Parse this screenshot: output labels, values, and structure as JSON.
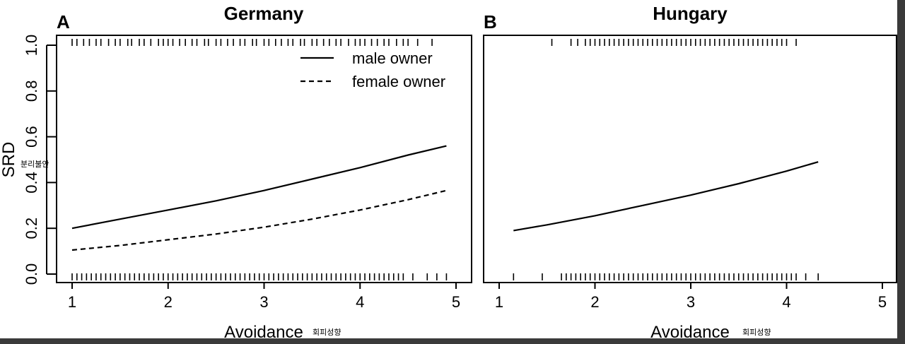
{
  "chart_data": [
    {
      "type": "line",
      "panel_letter": "A",
      "title": "Germany",
      "xlabel": "Avoidance",
      "xlabel_annotation": "회피성향",
      "ylabel": "SRD",
      "ylabel_annotation": "분리불안",
      "xlim": [
        1,
        5
      ],
      "ylim": [
        0,
        1
      ],
      "x_ticks": [
        1,
        2,
        3,
        4,
        5
      ],
      "y_ticks": [
        0.0,
        0.2,
        0.4,
        0.6,
        0.8,
        1.0
      ],
      "y_tick_labels": [
        "0.0",
        "0.2",
        "0.4",
        "0.6",
        "0.8",
        "1.0"
      ],
      "legend": {
        "position": "top-right",
        "entries": [
          {
            "label": "male owner",
            "style": "solid"
          },
          {
            "label": "female owner",
            "style": "dashed"
          }
        ]
      },
      "series": [
        {
          "name": "male owner",
          "style": "solid",
          "x": [
            1.0,
            1.5,
            2.0,
            2.5,
            3.0,
            3.5,
            4.0,
            4.5,
            4.9
          ],
          "y": [
            0.2,
            0.24,
            0.28,
            0.32,
            0.365,
            0.415,
            0.465,
            0.52,
            0.56
          ]
        },
        {
          "name": "female owner",
          "style": "dashed",
          "x": [
            1.0,
            1.5,
            2.0,
            2.5,
            3.0,
            3.5,
            4.0,
            4.5,
            4.9
          ],
          "y": [
            0.105,
            0.125,
            0.15,
            0.175,
            0.205,
            0.24,
            0.28,
            0.325,
            0.365
          ]
        }
      ],
      "rug_top": [
        1.0,
        1.05,
        1.12,
        1.18,
        1.25,
        1.3,
        1.38,
        1.45,
        1.5,
        1.58,
        1.62,
        1.7,
        1.75,
        1.82,
        1.9,
        1.95,
        2.0,
        2.05,
        2.12,
        2.18,
        2.25,
        2.3,
        2.38,
        2.42,
        2.5,
        2.55,
        2.62,
        2.68,
        2.75,
        2.8,
        2.88,
        2.92,
        3.0,
        3.05,
        3.12,
        3.18,
        3.25,
        3.3,
        3.38,
        3.42,
        3.5,
        3.55,
        3.62,
        3.68,
        3.75,
        3.8,
        3.88,
        3.95,
        4.0,
        4.05,
        4.12,
        4.18,
        4.25,
        4.3,
        4.38,
        4.45,
        4.5,
        4.6,
        4.75
      ],
      "rug_bottom": [
        1.0,
        1.05,
        1.1,
        1.15,
        1.2,
        1.25,
        1.3,
        1.35,
        1.4,
        1.45,
        1.5,
        1.55,
        1.6,
        1.65,
        1.7,
        1.75,
        1.8,
        1.85,
        1.9,
        1.95,
        2.0,
        2.05,
        2.1,
        2.15,
        2.2,
        2.25,
        2.3,
        2.35,
        2.4,
        2.45,
        2.5,
        2.55,
        2.6,
        2.65,
        2.7,
        2.75,
        2.8,
        2.85,
        2.9,
        2.95,
        3.0,
        3.05,
        3.1,
        3.15,
        3.2,
        3.25,
        3.3,
        3.35,
        3.4,
        3.45,
        3.5,
        3.55,
        3.6,
        3.65,
        3.7,
        3.75,
        3.8,
        3.85,
        3.9,
        3.95,
        4.0,
        4.05,
        4.1,
        4.15,
        4.2,
        4.25,
        4.3,
        4.35,
        4.4,
        4.45,
        4.55,
        4.7,
        4.8,
        4.9
      ]
    },
    {
      "type": "line",
      "panel_letter": "B",
      "title": "Hungary",
      "xlabel": "Avoidance",
      "xlabel_annotation": "회피성향",
      "xlim": [
        1,
        5
      ],
      "ylim": [
        0,
        1
      ],
      "x_ticks": [
        1,
        2,
        3,
        4,
        5
      ],
      "series": [
        {
          "style": "solid",
          "x": [
            1.15,
            1.5,
            2.0,
            2.5,
            3.0,
            3.5,
            4.0,
            4.33
          ],
          "y": [
            0.19,
            0.215,
            0.255,
            0.3,
            0.345,
            0.395,
            0.45,
            0.49
          ]
        }
      ],
      "rug_top": [
        1.55,
        1.75,
        1.82,
        1.9,
        1.95,
        2.0,
        2.05,
        2.1,
        2.15,
        2.2,
        2.25,
        2.3,
        2.35,
        2.4,
        2.45,
        2.5,
        2.55,
        2.6,
        2.65,
        2.7,
        2.75,
        2.8,
        2.85,
        2.9,
        2.95,
        3.0,
        3.05,
        3.1,
        3.15,
        3.2,
        3.25,
        3.3,
        3.35,
        3.4,
        3.45,
        3.5,
        3.55,
        3.6,
        3.65,
        3.7,
        3.75,
        3.8,
        3.85,
        3.9,
        3.95,
        4.0,
        4.1
      ],
      "rug_bottom": [
        1.15,
        1.45,
        1.65,
        1.7,
        1.75,
        1.8,
        1.85,
        1.9,
        1.95,
        2.0,
        2.05,
        2.1,
        2.15,
        2.2,
        2.25,
        2.3,
        2.35,
        2.4,
        2.45,
        2.5,
        2.55,
        2.6,
        2.65,
        2.7,
        2.75,
        2.8,
        2.85,
        2.9,
        2.95,
        3.0,
        3.05,
        3.1,
        3.15,
        3.2,
        3.25,
        3.3,
        3.35,
        3.4,
        3.45,
        3.5,
        3.55,
        3.6,
        3.65,
        3.7,
        3.75,
        3.8,
        3.85,
        3.9,
        3.95,
        4.0,
        4.05,
        4.1,
        4.2,
        4.33
      ]
    }
  ]
}
